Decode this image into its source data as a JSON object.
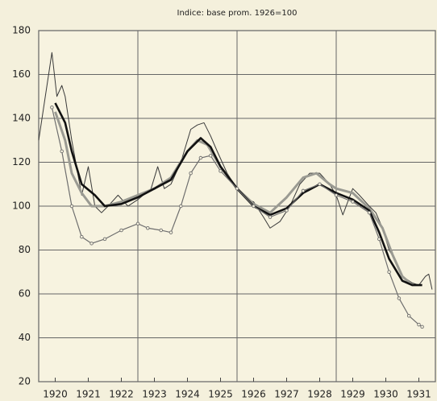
{
  "chart_data": {
    "type": "line",
    "title": "Indice: base prom. 1926=100",
    "xlim": [
      1920,
      1932
    ],
    "xticks": [
      {
        "value": 1920.5,
        "label": "1920"
      },
      {
        "value": 1921.5,
        "label": "1921"
      },
      {
        "value": 1922.5,
        "label": "1922"
      },
      {
        "value": 1923.5,
        "label": "1923"
      },
      {
        "value": 1924.5,
        "label": "1924"
      },
      {
        "value": 1925.5,
        "label": "1925"
      },
      {
        "value": 1926.5,
        "label": "1926"
      },
      {
        "value": 1927.5,
        "label": "1927"
      },
      {
        "value": 1928.5,
        "label": "1928"
      },
      {
        "value": 1929.5,
        "label": "1929"
      },
      {
        "value": 1930.5,
        "label": "1930"
      },
      {
        "value": 1931.5,
        "label": "1931"
      }
    ],
    "x_gridlines": [
      1920,
      1923,
      1926,
      1929,
      1932
    ],
    "ylim": [
      20,
      180
    ],
    "yticks": [
      20,
      40,
      60,
      80,
      100,
      120,
      140,
      160,
      180
    ],
    "grid": true,
    "series": [
      {
        "color": "#3a3a3a",
        "width": 1,
        "x": [
          1920.0,
          1920.4,
          1920.55,
          1920.7,
          1920.8,
          1921.0,
          1921.3,
          1921.5,
          1921.7,
          1921.9,
          1922.1,
          1922.4,
          1922.7,
          1923.0,
          1923.4,
          1923.6,
          1923.8,
          1924.0,
          1924.3,
          1924.6,
          1924.8,
          1925.0,
          1925.2,
          1925.4,
          1925.7,
          1926.0,
          1926.3,
          1926.5,
          1926.8,
          1927.0,
          1927.3,
          1927.6,
          1927.9,
          1928.2,
          1928.5,
          1928.8,
          1929.0,
          1929.2,
          1929.5,
          1929.7,
          1930.0,
          1930.2,
          1930.4,
          1930.6,
          1930.8,
          1931.0,
          1931.3,
          1931.5,
          1931.7,
          1931.8,
          1931.9
        ],
        "values": [
          130,
          170,
          150,
          155,
          150,
          130,
          105,
          118,
          100,
          97,
          100,
          105,
          100,
          103,
          108,
          118,
          108,
          110,
          120,
          135,
          137,
          138,
          132,
          125,
          115,
          108,
          103,
          102,
          95,
          90,
          93,
          100,
          110,
          115,
          115,
          110,
          105,
          96,
          108,
          105,
          100,
          97,
          90,
          80,
          75,
          68,
          65,
          64,
          68,
          69,
          62
        ]
      },
      {
        "color": "#9a9a92",
        "width": 3,
        "x": [
          1920.5,
          1920.8,
          1921.0,
          1921.3,
          1921.6,
          1922.0,
          1922.5,
          1923.0,
          1923.5,
          1924.0,
          1924.5,
          1924.8,
          1925.1,
          1925.5,
          1926.0,
          1926.5,
          1927.0,
          1927.5,
          1928.0,
          1928.4,
          1928.8,
          1929.0,
          1929.5,
          1930.0,
          1930.4,
          1930.7,
          1931.0,
          1931.3
        ],
        "values": [
          143,
          130,
          115,
          106,
          100,
          100,
          102,
          105,
          108,
          113,
          125,
          130,
          128,
          118,
          108,
          101,
          97,
          104,
          113,
          115,
          110,
          108,
          106,
          99,
          90,
          78,
          68,
          64
        ]
      },
      {
        "color": "#111111",
        "width": 2.6,
        "x": [
          1920.5,
          1920.8,
          1921.0,
          1921.3,
          1921.7,
          1922.0,
          1922.5,
          1923.0,
          1923.5,
          1924.0,
          1924.5,
          1924.9,
          1925.2,
          1925.5,
          1926.0,
          1926.5,
          1927.0,
          1927.5,
          1928.0,
          1928.5,
          1929.0,
          1929.5,
          1930.0,
          1930.3,
          1930.6,
          1931.0,
          1931.3,
          1931.6
        ],
        "values": [
          147,
          138,
          125,
          110,
          105,
          100,
          101,
          104,
          108,
          112,
          125,
          131,
          127,
          118,
          108,
          100,
          96,
          99,
          106,
          110,
          106,
          103,
          98,
          88,
          76,
          66,
          64,
          64
        ]
      },
      {
        "color": "#6e6e6e",
        "width": 1.2,
        "markers": true,
        "x": [
          1920.4,
          1920.7,
          1921.0,
          1921.3,
          1921.6,
          1922.0,
          1922.5,
          1923.0,
          1923.3,
          1923.7,
          1924.0,
          1924.3,
          1924.6,
          1924.9,
          1925.2,
          1925.5,
          1926.0,
          1926.5,
          1927.0,
          1927.5,
          1928.0,
          1928.5,
          1929.0,
          1929.5,
          1930.0,
          1930.3,
          1930.6,
          1930.9,
          1931.2,
          1931.5,
          1931.6
        ],
        "values": [
          145,
          125,
          100,
          86,
          83,
          85,
          89,
          92,
          90,
          89,
          88,
          100,
          115,
          122,
          123,
          116,
          108,
          100,
          95,
          98,
          107,
          110,
          105,
          102,
          97,
          85,
          70,
          58,
          50,
          46,
          45
        ]
      }
    ]
  }
}
